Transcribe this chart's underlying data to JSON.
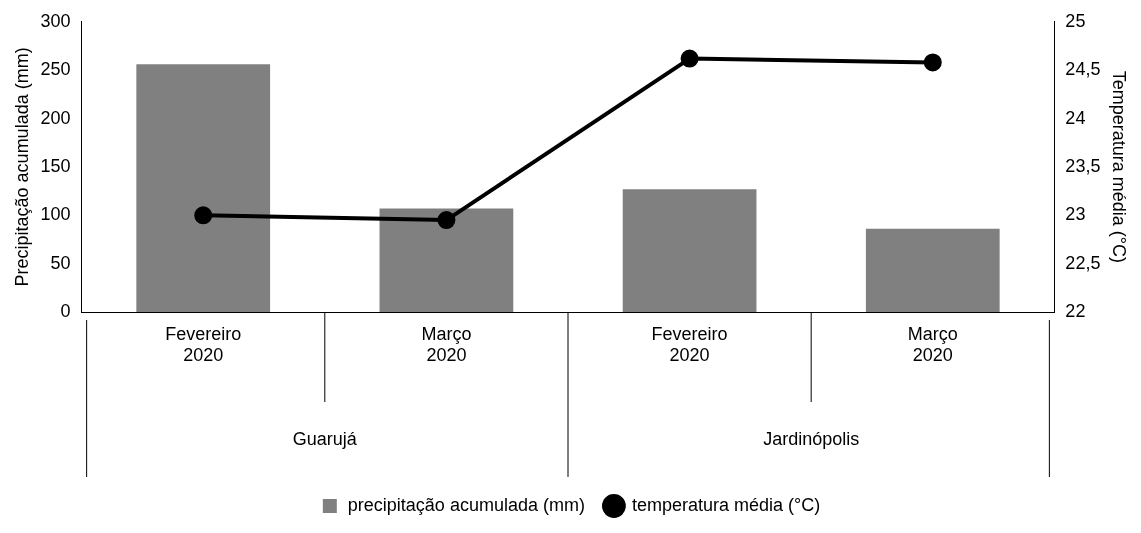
{
  "chart_data": {
    "type": "bar",
    "categories": [
      "Fevereiro\n2020",
      "Março\n2020",
      "Fevereiro\n2020",
      "Março\n2020"
    ],
    "ylabel": "Precipitação acumulada (mm)",
    "y2label": "Temperatura média (°C)",
    "series": [
      {
        "name": "precipitação acumulada (mm)",
        "color": "#808080",
        "values": [
          256,
          107,
          127,
          86
        ]
      },
      {
        "name": "temperatura média (°C)",
        "type": "line",
        "axis": "y2",
        "color": "#000000",
        "values": [
          23.0,
          22.95,
          24.62,
          24.58
        ]
      }
    ],
    "ylim": [
      0,
      300
    ],
    "yticks": [
      0,
      50,
      100,
      150,
      200,
      250,
      300
    ],
    "y2lim": [
      22,
      25
    ],
    "y2ticks": [
      22,
      {
        "value": 22.5,
        "label": "22,5"
      },
      23,
      {
        "value": 23.5,
        "label": "23,5"
      },
      24,
      {
        "value": 24.5,
        "label": "24,5"
      },
      25
    ],
    "annotations": [
      "Guarujá",
      "Jardinópolis"
    ],
    "marker": "circle",
    "grid": false,
    "legend": "bottom"
  }
}
